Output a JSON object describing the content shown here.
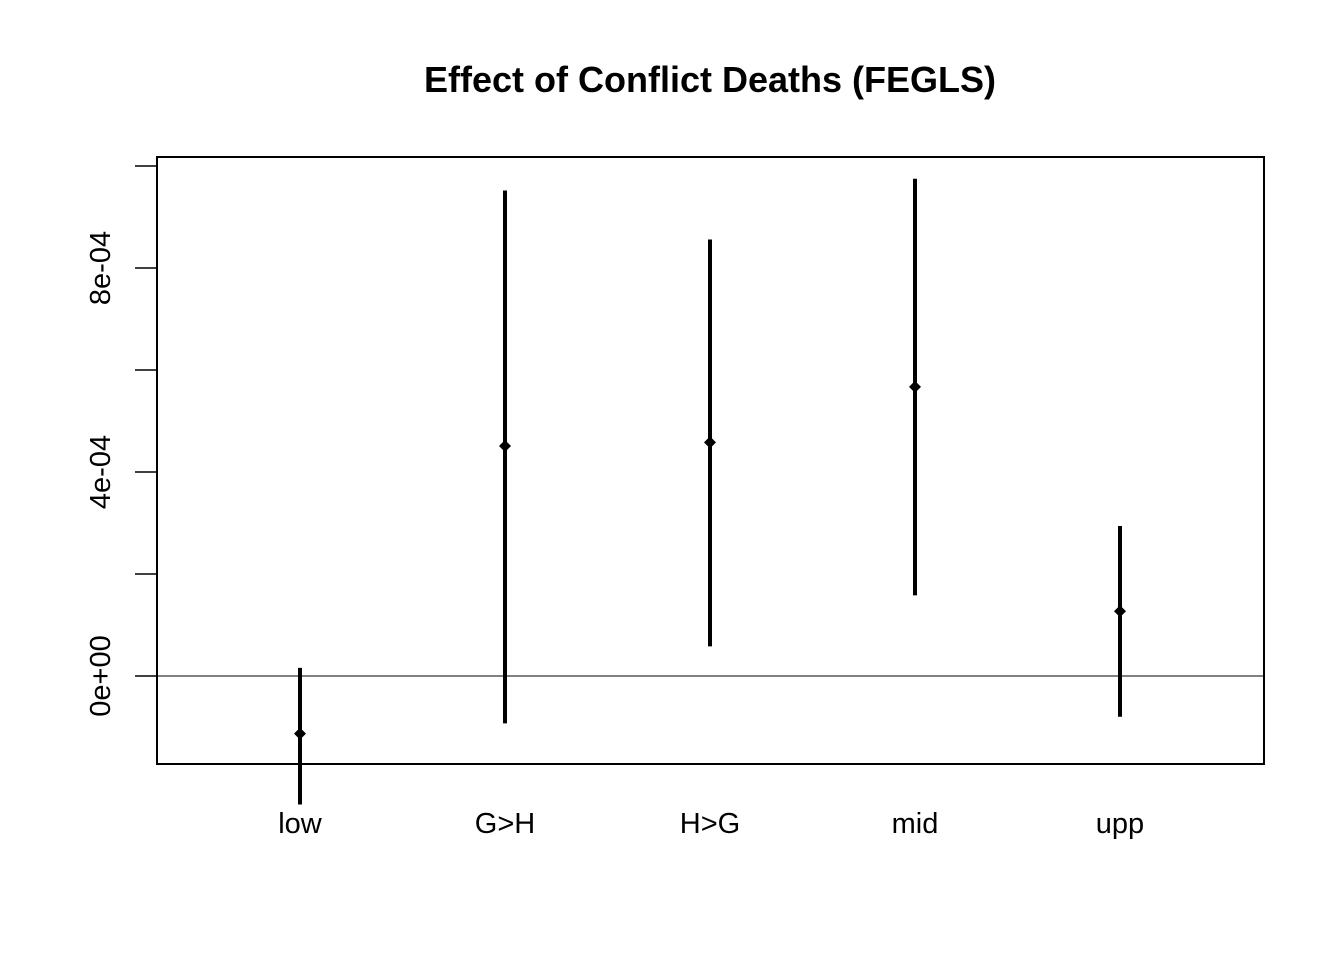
{
  "chart_data": {
    "type": "errorbar",
    "title": "Effect of Conflict Deaths (FEGLS)",
    "xlabel": "",
    "ylabel": "",
    "categories": [
      "low",
      "G>H",
      "H>G",
      "mid",
      "upp"
    ],
    "estimates": [
      -0.000113,
      0.000451,
      0.000458,
      0.000567,
      0.000127
    ],
    "lower": [
      -0.000252,
      -9.3e-05,
      5.8e-05,
      0.000158,
      -8e-05
    ],
    "upper": [
      1.6e-05,
      0.000952,
      0.000856,
      0.000975,
      0.000294
    ],
    "ylim": [
      -0.000175,
      0.001
    ],
    "yticks": [
      0,
      0.0002,
      0.0004,
      0.0006,
      0.0008,
      0.001
    ],
    "ytick_labels": [
      "0e+00",
      "",
      "4e-04",
      "",
      "8e-04",
      ""
    ],
    "reference_line": 0,
    "marker": "diamond",
    "color": "#000000"
  }
}
